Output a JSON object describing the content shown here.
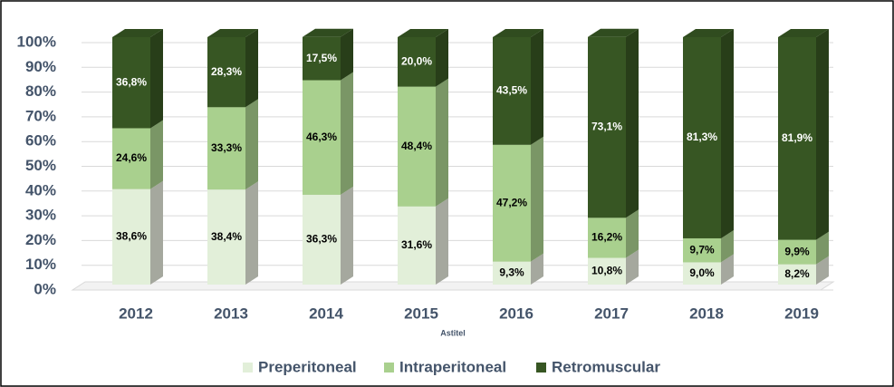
{
  "chart_data": {
    "type": "bar",
    "stacked": true,
    "x_label": "Astitel",
    "categories": [
      "2012",
      "2013",
      "2014",
      "2015",
      "2016",
      "2017",
      "2018",
      "2019"
    ],
    "series": [
      {
        "name": "Preperitoneal",
        "color": "#e2efd9",
        "values": [
          38.6,
          38.4,
          36.3,
          31.6,
          9.3,
          10.8,
          9.0,
          8.2
        ],
        "value_labels": [
          "38,6%",
          "38,4%",
          "36,3%",
          "31,6%",
          "9,3%",
          "10,8%",
          "9,0%",
          "8,2%"
        ]
      },
      {
        "name": "Intraperitoneal",
        "color": "#a9d08e",
        "values": [
          24.6,
          33.3,
          46.3,
          48.4,
          47.2,
          16.2,
          9.7,
          9.9
        ],
        "value_labels": [
          "24,6%",
          "33,3%",
          "46,3%",
          "48,4%",
          "47,2%",
          "16,2%",
          "9,7%",
          "9,9%"
        ]
      },
      {
        "name": "Retromuscular",
        "color": "#375623",
        "values": [
          36.8,
          28.3,
          17.5,
          20.0,
          43.5,
          73.1,
          81.3,
          81.9
        ],
        "value_labels": [
          "36,8%",
          "28,3%",
          "17,5%",
          "20,0%",
          "43,5%",
          "73,1%",
          "81,3%",
          "81,9%"
        ]
      }
    ],
    "ylim": [
      0,
      100
    ],
    "yticks": [
      {
        "value": 0,
        "label": "0%"
      },
      {
        "value": 10,
        "label": "10%"
      },
      {
        "value": 20,
        "label": "20%"
      },
      {
        "value": 30,
        "label": "30%"
      },
      {
        "value": 40,
        "label": "40%"
      },
      {
        "value": 50,
        "label": "50%"
      },
      {
        "value": 60,
        "label": "60%"
      },
      {
        "value": 70,
        "label": "70%"
      },
      {
        "value": 80,
        "label": "80%"
      },
      {
        "value": 90,
        "label": "90%"
      },
      {
        "value": 100,
        "label": "100%"
      }
    ],
    "grid": true,
    "legend": "bottom"
  }
}
